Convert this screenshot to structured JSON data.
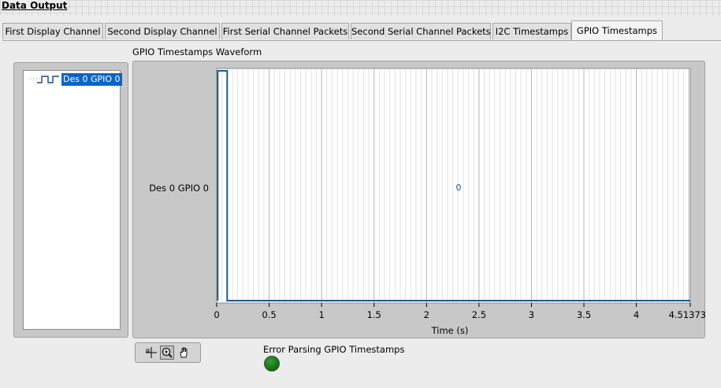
{
  "section_title": "Data Output",
  "tabs": [
    {
      "label": "First Display Channel",
      "active": false
    },
    {
      "label": "Second Display Channel",
      "active": false
    },
    {
      "label": "First Serial Channel Packets",
      "active": false
    },
    {
      "label": "Second Serial Channel Packets",
      "active": false
    },
    {
      "label": "I2C Timestamps",
      "active": false
    },
    {
      "label": "GPIO Timestamps",
      "active": true
    }
  ],
  "tree": {
    "items": [
      {
        "label": "Des 0 GPIO 0",
        "icon": "digital-waveform-icon",
        "selected": true
      }
    ]
  },
  "graph": {
    "caption": "GPIO Timestamps Waveform",
    "signal_label": "Des 0 GPIO 0",
    "inline_value": "0",
    "xlabel": "Time (s)"
  },
  "chart_data": {
    "type": "line",
    "title": "GPIO Timestamps Waveform",
    "xlabel": "Time (s)",
    "ylabel": "",
    "xlim": [
      0,
      4.513732
    ],
    "x_ticks": [
      "0",
      "0.5",
      "1",
      "1.5",
      "2",
      "2.5",
      "3",
      "3.5",
      "4",
      "4.513732"
    ],
    "series": [
      {
        "name": "Des 0 GPIO 0",
        "x": [
          0.01,
          0.01,
          0.1,
          0.1,
          4.513732
        ],
        "y": [
          0,
          1,
          1,
          0,
          0
        ]
      }
    ],
    "grid": true,
    "colors": {
      "plot_bg": "#ffffff",
      "trace": "#1f5a8a",
      "grid": "#c8c8c8"
    }
  },
  "palette": {
    "buttons": [
      {
        "name": "cursor-tool-icon",
        "glyph": "+"
      },
      {
        "name": "zoom-tool-icon",
        "glyph": "⊕"
      },
      {
        "name": "pan-tool-icon",
        "glyph": "✋"
      }
    ]
  },
  "indicator": {
    "label": "Error Parsing GPIO Timestamps",
    "led_color": "#137a13"
  }
}
